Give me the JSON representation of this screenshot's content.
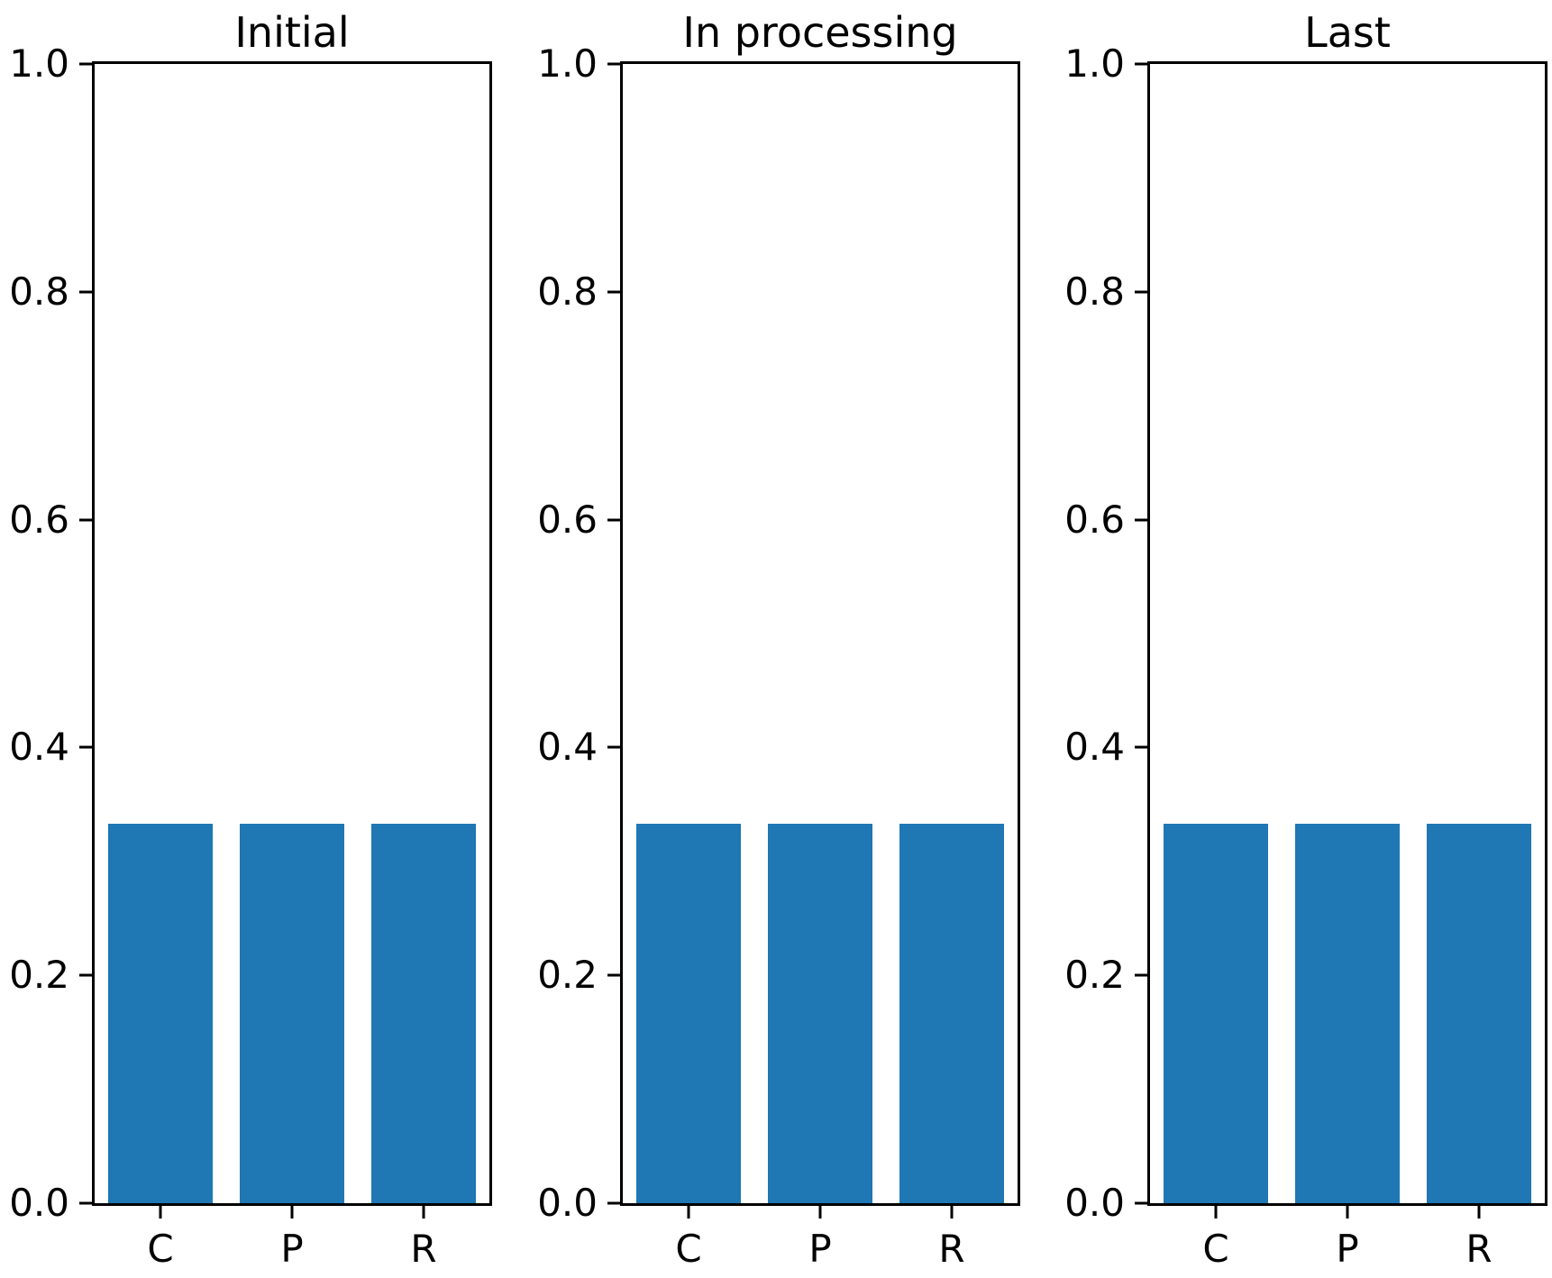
{
  "figure": {
    "background": "#ffffff",
    "bar_color": "#1f77b4",
    "axis_color": "#000000",
    "text_color": "#000000"
  },
  "chart_data": [
    {
      "type": "bar",
      "title": "Initial",
      "categories": [
        "C",
        "P",
        "R"
      ],
      "values": [
        0.333,
        0.333,
        0.333
      ],
      "xlabel": "",
      "ylabel": "",
      "ylim": [
        0.0,
        1.0
      ],
      "yticks": [
        "0.0",
        "0.2",
        "0.4",
        "0.6",
        "0.8",
        "1.0"
      ],
      "grid": false,
      "legend": null
    },
    {
      "type": "bar",
      "title": "In processing",
      "categories": [
        "C",
        "P",
        "R"
      ],
      "values": [
        0.333,
        0.333,
        0.333
      ],
      "xlabel": "",
      "ylabel": "",
      "ylim": [
        0.0,
        1.0
      ],
      "yticks": [
        "0.0",
        "0.2",
        "0.4",
        "0.6",
        "0.8",
        "1.0"
      ],
      "grid": false,
      "legend": null
    },
    {
      "type": "bar",
      "title": "Last",
      "categories": [
        "C",
        "P",
        "R"
      ],
      "values": [
        0.333,
        0.333,
        0.333
      ],
      "xlabel": "",
      "ylabel": "",
      "ylim": [
        0.0,
        1.0
      ],
      "yticks": [
        "0.0",
        "0.2",
        "0.4",
        "0.6",
        "0.8",
        "1.0"
      ],
      "grid": false,
      "legend": null
    }
  ]
}
